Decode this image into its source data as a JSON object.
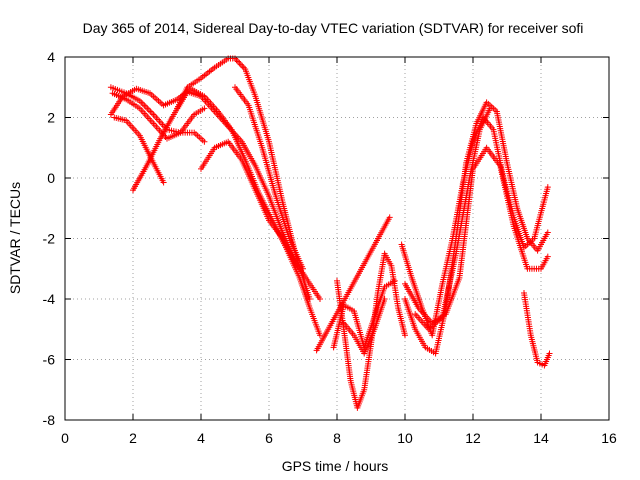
{
  "chart_data": {
    "type": "scatter",
    "title": "Day 365 of 2014, Sidereal Day-to-day VTEC variation (SDTVAR) for receiver sofi",
    "xlabel": "GPS time / hours",
    "ylabel": "SDTVAR / TECUs",
    "xlim": [
      0,
      16
    ],
    "ylim": [
      -8,
      4
    ],
    "xticks": [
      "0",
      "2",
      "4",
      "6",
      "8",
      "10",
      "12",
      "14",
      "16"
    ],
    "yticks": [
      "-8",
      "-6",
      "-4",
      "-2",
      "0",
      "2",
      "4"
    ],
    "grid": true,
    "legend": "none",
    "marker": "+",
    "color": "#ff0000",
    "series": [
      {
        "x": [
          1.35,
          1.7,
          2.1,
          2.5,
          2.9,
          3.3,
          3.7,
          4.1,
          4.5,
          4.9,
          5.3,
          5.7,
          6.1,
          6.5,
          6.9,
          7.2,
          7.5
        ],
        "y": [
          2.1,
          2.7,
          2.95,
          2.8,
          2.4,
          2.6,
          2.95,
          2.7,
          2.2,
          1.6,
          0.6,
          -0.5,
          -1.4,
          -2.3,
          -3.3,
          -4.3,
          -5.2
        ]
      },
      {
        "x": [
          1.35,
          1.8,
          2.2,
          2.6,
          3.0,
          3.4,
          3.8,
          4.1
        ],
        "y": [
          3.0,
          2.8,
          2.55,
          2.1,
          1.6,
          1.5,
          2.1,
          2.3
        ]
      },
      {
        "x": [
          1.4,
          1.8,
          2.2,
          2.6,
          3.0,
          3.4,
          3.8,
          4.1
        ],
        "y": [
          2.8,
          2.6,
          2.3,
          1.8,
          1.3,
          1.5,
          1.5,
          1.2
        ]
      },
      {
        "x": [
          1.45,
          1.8,
          2.2,
          2.6,
          2.9
        ],
        "y": [
          2.0,
          1.9,
          1.4,
          0.5,
          -0.15
        ]
      },
      {
        "x": [
          2.0,
          2.4,
          2.8,
          3.2,
          3.6,
          4.0,
          4.4,
          4.8,
          5.2,
          5.6,
          6.0,
          6.4,
          6.8,
          7.2,
          7.5
        ],
        "y": [
          -0.4,
          0.4,
          1.3,
          2.1,
          2.85,
          2.7,
          2.2,
          1.7,
          1.2,
          0.4,
          -0.6,
          -1.8,
          -2.8,
          -3.5,
          -4.0
        ]
      },
      {
        "x": [
          3.3,
          3.6,
          4.0,
          4.4,
          4.8,
          5.0,
          5.3,
          5.6,
          6.0,
          6.4,
          6.8,
          7.2
        ],
        "y": [
          2.3,
          3.0,
          3.3,
          3.65,
          3.95,
          3.95,
          3.6,
          2.7,
          1.2,
          -0.8,
          -2.6,
          -4.0
        ]
      },
      {
        "x": [
          4.0,
          4.4,
          4.8,
          5.2,
          5.6,
          6.0,
          6.4,
          6.8
        ],
        "y": [
          0.3,
          1.0,
          1.2,
          0.6,
          -0.4,
          -1.4,
          -2.0,
          -2.9
        ]
      },
      {
        "x": [
          5.0,
          5.4,
          5.8,
          6.2,
          6.6,
          7.0
        ],
        "y": [
          3.0,
          2.4,
          1.0,
          -0.6,
          -2.0,
          -3.0
        ]
      },
      {
        "x": [
          8.0,
          8.2,
          8.4,
          8.6,
          8.8,
          9.0,
          9.2,
          9.4,
          9.6,
          9.8,
          10.0
        ],
        "y": [
          -3.4,
          -5.0,
          -6.7,
          -7.6,
          -7.0,
          -5.5,
          -3.8,
          -2.5,
          -2.9,
          -4.3,
          -5.2
        ]
      },
      {
        "x": [
          7.9,
          8.2,
          8.5,
          8.8,
          9.1,
          9.4,
          9.7
        ],
        "y": [
          -5.6,
          -4.2,
          -4.4,
          -5.6,
          -4.6,
          -3.6,
          -3.4
        ]
      },
      {
        "x": [
          8.2,
          8.5,
          8.8,
          9.1,
          9.4
        ],
        "y": [
          -4.8,
          -5.2,
          -5.8,
          -5.0,
          -4.0
        ]
      },
      {
        "x": [
          9.9,
          10.2,
          10.5,
          10.8,
          11.1,
          11.4,
          11.7,
          12.0,
          12.3,
          12.6,
          12.9,
          13.2,
          13.5,
          13.8,
          14.2
        ],
        "y": [
          -2.2,
          -3.3,
          -4.3,
          -5.2,
          -3.5,
          -2.0,
          -0.2,
          1.2,
          2.0,
          1.6,
          0.0,
          -1.3,
          -2.3,
          -2.0,
          -0.3
        ]
      },
      {
        "x": [
          10.0,
          10.3,
          10.6,
          10.9,
          11.2,
          11.5,
          11.8,
          12.1,
          12.4,
          12.7,
          13.0,
          13.3,
          13.6,
          13.9,
          14.2
        ],
        "y": [
          -4.0,
          -5.0,
          -5.6,
          -5.8,
          -4.3,
          -2.0,
          0.5,
          1.8,
          2.5,
          2.2,
          0.5,
          -1.0,
          -2.0,
          -2.4,
          -1.8
        ]
      },
      {
        "x": [
          10.0,
          10.4,
          10.8,
          11.2,
          11.6,
          12.0,
          12.4,
          12.8,
          13.2,
          13.6,
          14.0,
          14.2
        ],
        "y": [
          -3.5,
          -4.3,
          -4.8,
          -4.5,
          -3.3,
          0.3,
          1.0,
          0.4,
          -1.6,
          -3.0,
          -3.0,
          -2.6
        ]
      },
      {
        "x": [
          10.3,
          10.7,
          11.1,
          11.5,
          11.9,
          12.2,
          12.5
        ],
        "y": [
          -4.5,
          -5.0,
          -4.6,
          -2.5,
          0.0,
          1.6,
          2.3
        ]
      },
      {
        "x": [
          13.5,
          13.7,
          13.9,
          14.1,
          14.25
        ],
        "y": [
          -3.8,
          -5.2,
          -6.1,
          -6.2,
          -5.8
        ]
      },
      {
        "x": [
          7.4,
          9.55
        ],
        "y": [
          -5.7,
          -1.3
        ]
      }
    ]
  }
}
